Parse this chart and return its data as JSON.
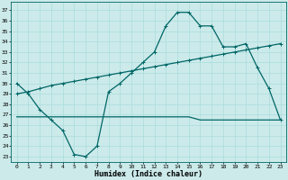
{
  "title": "",
  "xlabel": "Humidex (Indice chaleur)",
  "ylabel": "",
  "bg_color": "#cceaea",
  "grid_color": "#aadddd",
  "line_color": "#006666",
  "x_ticks": [
    0,
    1,
    2,
    3,
    4,
    5,
    6,
    7,
    8,
    9,
    10,
    11,
    12,
    13,
    14,
    15,
    16,
    17,
    18,
    19,
    20,
    21,
    22,
    23
  ],
  "y_ticks": [
    23,
    24,
    25,
    26,
    27,
    28,
    29,
    30,
    31,
    32,
    33,
    34,
    35,
    36,
    37
  ],
  "ylim": [
    22.5,
    37.8
  ],
  "xlim": [
    -0.5,
    23.5
  ],
  "line1_x": [
    0,
    1,
    2,
    3,
    4,
    5,
    6,
    7,
    8,
    9,
    10,
    11,
    12,
    13,
    14,
    15,
    16,
    17,
    18,
    19,
    20,
    21,
    22,
    23
  ],
  "line1_y": [
    30.0,
    29.0,
    27.5,
    26.5,
    25.5,
    23.2,
    23.0,
    24.0,
    29.2,
    30.0,
    31.0,
    32.0,
    33.0,
    35.5,
    36.8,
    36.8,
    35.5,
    35.5,
    33.5,
    33.5,
    33.8,
    31.5,
    29.5,
    26.5
  ],
  "line2_x": [
    0,
    1,
    2,
    3,
    4,
    5,
    6,
    7,
    8,
    9,
    10,
    11,
    12,
    13,
    14,
    15,
    16,
    17,
    18,
    19,
    20,
    21,
    22,
    23
  ],
  "line2_y": [
    29.0,
    29.2,
    29.5,
    29.8,
    30.0,
    30.2,
    30.4,
    30.6,
    30.8,
    31.0,
    31.2,
    31.4,
    31.6,
    31.8,
    32.0,
    32.2,
    32.4,
    32.6,
    32.8,
    33.0,
    33.2,
    33.4,
    33.6,
    33.8
  ],
  "line3_x": [
    0,
    1,
    2,
    3,
    4,
    5,
    6,
    7,
    8,
    9,
    10,
    11,
    12,
    13,
    14,
    15,
    16,
    17,
    18,
    19,
    20,
    21,
    22,
    23
  ],
  "line3_y": [
    26.8,
    26.8,
    26.8,
    26.8,
    26.8,
    26.8,
    26.8,
    26.8,
    26.8,
    26.8,
    26.8,
    26.8,
    26.8,
    26.8,
    26.8,
    26.8,
    26.5,
    26.5,
    26.5,
    26.5,
    26.5,
    26.5,
    26.5,
    26.5
  ],
  "marker": "+",
  "marker_size": 3,
  "linewidth": 0.9,
  "tick_fontsize": 4.5,
  "label_fontsize": 6.0
}
